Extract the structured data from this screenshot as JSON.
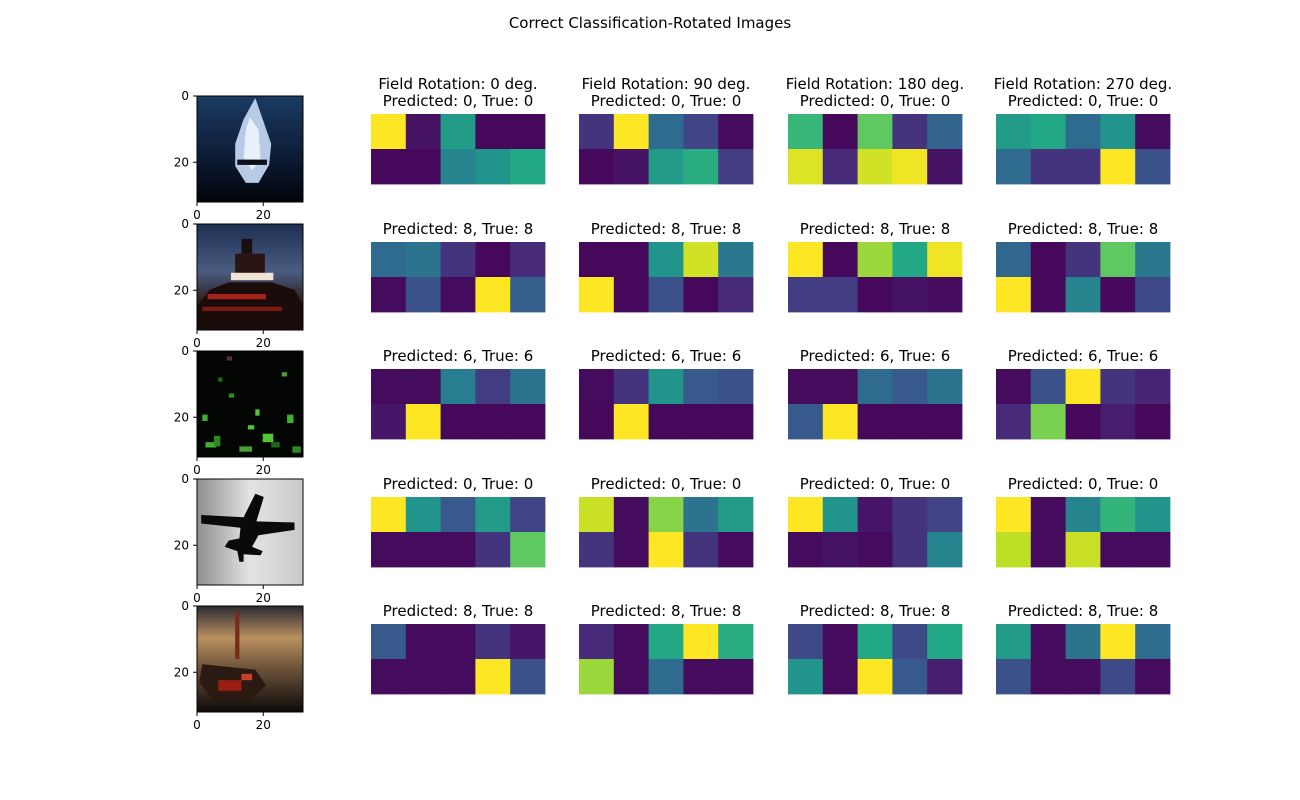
{
  "figure": {
    "title": "Correct Classification-Rotated Images"
  },
  "chart_data": {
    "type": "heatmap",
    "colormap": "viridis",
    "value_range": [
      0,
      1
    ],
    "column_headers": [
      "Field Rotation: 0 deg.",
      "Field Rotation: 90 deg.",
      "Field Rotation: 180 deg.",
      "Field Rotation: 270 deg."
    ],
    "image_axis": {
      "xlim": [
        0,
        32
      ],
      "ylim": [
        32,
        0
      ],
      "xticks": [
        "0",
        "20"
      ],
      "yticks": [
        "0",
        "20"
      ]
    },
    "rows": [
      {
        "prediction_label": "Predicted: 0, True: 0",
        "sample_image": "cifar-airplane-light-blue-on-dark-blue",
        "maps": [
          [
            [
              1.0,
              0.05,
              0.55,
              0.02,
              0.02
            ],
            [
              0.02,
              0.02,
              0.45,
              0.52,
              0.6
            ]
          ],
          [
            [
              0.15,
              1.0,
              0.35,
              0.2,
              0.03
            ],
            [
              0.02,
              0.05,
              0.55,
              0.62,
              0.18
            ]
          ],
          [
            [
              0.66,
              0.02,
              0.75,
              0.15,
              0.32
            ],
            [
              0.95,
              0.12,
              0.93,
              0.98,
              0.05
            ]
          ],
          [
            [
              0.55,
              0.6,
              0.35,
              0.52,
              0.03
            ],
            [
              0.35,
              0.15,
              0.15,
              1.0,
              0.25
            ]
          ]
        ]
      },
      {
        "prediction_label": "Predicted: 8, True: 8",
        "sample_image": "cifar-ship-at-sunset",
        "maps": [
          [
            [
              0.35,
              0.38,
              0.15,
              0.02,
              0.12
            ],
            [
              0.03,
              0.25,
              0.03,
              1.0,
              0.3
            ]
          ],
          [
            [
              0.02,
              0.02,
              0.52,
              0.93,
              0.4
            ],
            [
              1.0,
              0.02,
              0.25,
              0.02,
              0.12
            ]
          ],
          [
            [
              1.0,
              0.02,
              0.85,
              0.6,
              0.98
            ],
            [
              0.18,
              0.18,
              0.02,
              0.05,
              0.03
            ]
          ],
          [
            [
              0.33,
              0.02,
              0.15,
              0.75,
              0.4
            ],
            [
              1.0,
              0.02,
              0.45,
              0.02,
              0.22
            ]
          ]
        ]
      },
      {
        "prediction_label": "Predicted: 6, True: 6",
        "sample_image": "cifar-frog-green-on-black",
        "maps": [
          [
            [
              0.03,
              0.03,
              0.42,
              0.18,
              0.38
            ],
            [
              0.06,
              1.0,
              0.02,
              0.02,
              0.02
            ]
          ],
          [
            [
              0.03,
              0.15,
              0.52,
              0.28,
              0.25
            ],
            [
              0.02,
              1.0,
              0.02,
              0.02,
              0.02
            ]
          ],
          [
            [
              0.03,
              0.03,
              0.35,
              0.28,
              0.38
            ],
            [
              0.28,
              1.0,
              0.02,
              0.02,
              0.02
            ]
          ],
          [
            [
              0.03,
              0.25,
              1.0,
              0.15,
              0.1
            ],
            [
              0.12,
              0.8,
              0.02,
              0.08,
              0.02
            ]
          ]
        ]
      },
      {
        "prediction_label": "Predicted: 0, True: 0",
        "sample_image": "cifar-airplane-silhouette-on-gray",
        "maps": [
          [
            [
              1.0,
              0.52,
              0.28,
              0.55,
              0.2
            ],
            [
              0.03,
              0.03,
              0.03,
              0.15,
              0.75
            ]
          ],
          [
            [
              0.92,
              0.03,
              0.82,
              0.38,
              0.55
            ],
            [
              0.15,
              0.03,
              1.0,
              0.15,
              0.03
            ]
          ],
          [
            [
              1.0,
              0.52,
              0.06,
              0.15,
              0.2
            ],
            [
              0.03,
              0.05,
              0.03,
              0.15,
              0.45
            ]
          ],
          [
            [
              1.0,
              0.03,
              0.45,
              0.65,
              0.52
            ],
            [
              0.9,
              0.03,
              0.92,
              0.03,
              0.03
            ]
          ]
        ]
      },
      {
        "prediction_label": "Predicted: 8, True: 8",
        "sample_image": "cifar-ship-brown-orange",
        "maps": [
          [
            [
              0.28,
              0.03,
              0.03,
              0.15,
              0.06
            ],
            [
              0.03,
              0.03,
              0.03,
              1.0,
              0.25
            ]
          ],
          [
            [
              0.12,
              0.03,
              0.6,
              1.0,
              0.62
            ],
            [
              0.85,
              0.03,
              0.35,
              0.03,
              0.03
            ]
          ],
          [
            [
              0.22,
              0.03,
              0.6,
              0.22,
              0.6
            ],
            [
              0.52,
              0.03,
              1.0,
              0.28,
              0.08
            ]
          ],
          [
            [
              0.55,
              0.03,
              0.38,
              1.0,
              0.35
            ],
            [
              0.25,
              0.03,
              0.03,
              0.22,
              0.03
            ]
          ]
        ]
      }
    ]
  }
}
